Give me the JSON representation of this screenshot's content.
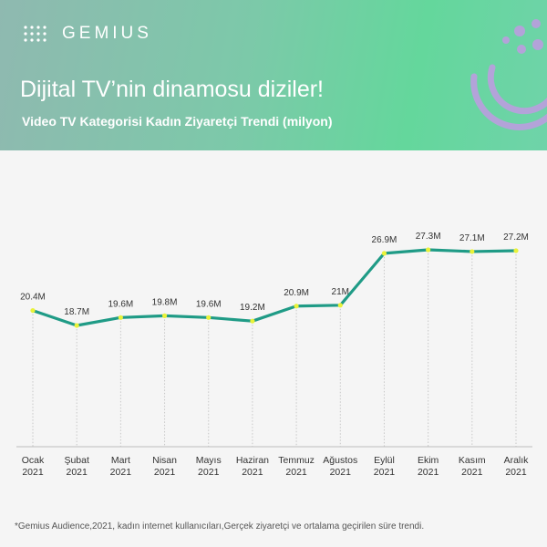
{
  "brand": {
    "name": "GEMIUS"
  },
  "header": {
    "headline": "Dijital TV’nin dinamosu diziler!",
    "subtitle": "Video TV Kategorisi Kadın Ziyaretçi Trendi (milyon)"
  },
  "footnote": "*Gemius Audience,2021, kadın internet kullanıcıları,Gerçek ziyaretçi ve ortalama geçirilen süre trendi.",
  "colors": {
    "line": "#1f9b86",
    "point": "#e9f23a",
    "header_from": "#8fb9b0",
    "header_to": "#64d79c",
    "deco": "#b3a3d9"
  },
  "chart_data": {
    "type": "line",
    "title": "Video TV Kategorisi Kadın Ziyaretçi Trendi (milyon)",
    "categories": [
      [
        "Ocak",
        "2021"
      ],
      [
        "Şubat",
        "2021"
      ],
      [
        "Mart",
        "2021"
      ],
      [
        "Nisan",
        "2021"
      ],
      [
        "Mayıs",
        "2021"
      ],
      [
        "Haziran",
        "2021"
      ],
      [
        "Temmuz",
        "2021"
      ],
      [
        "Ağustos",
        "2021"
      ],
      [
        "Eylül",
        "2021"
      ],
      [
        "Ekim",
        "2021"
      ],
      [
        "Kasım",
        "2021"
      ],
      [
        "Aralık",
        "2021"
      ]
    ],
    "series": [
      {
        "values": [
          20.4,
          18.7,
          19.6,
          19.8,
          19.6,
          19.2,
          20.9,
          21,
          26.9,
          27.3,
          27.1,
          27.2
        ],
        "labels": [
          "20.4M",
          "18.7M",
          "19.6M",
          "19.8M",
          "19.6M",
          "19.2M",
          "20.9M",
          "21M",
          "26.9M",
          "27.3M",
          "27.1M",
          "27.2M"
        ]
      }
    ],
    "xlabel": "",
    "ylabel": "",
    "grid": "vertical dotted lines",
    "legend": "none"
  }
}
